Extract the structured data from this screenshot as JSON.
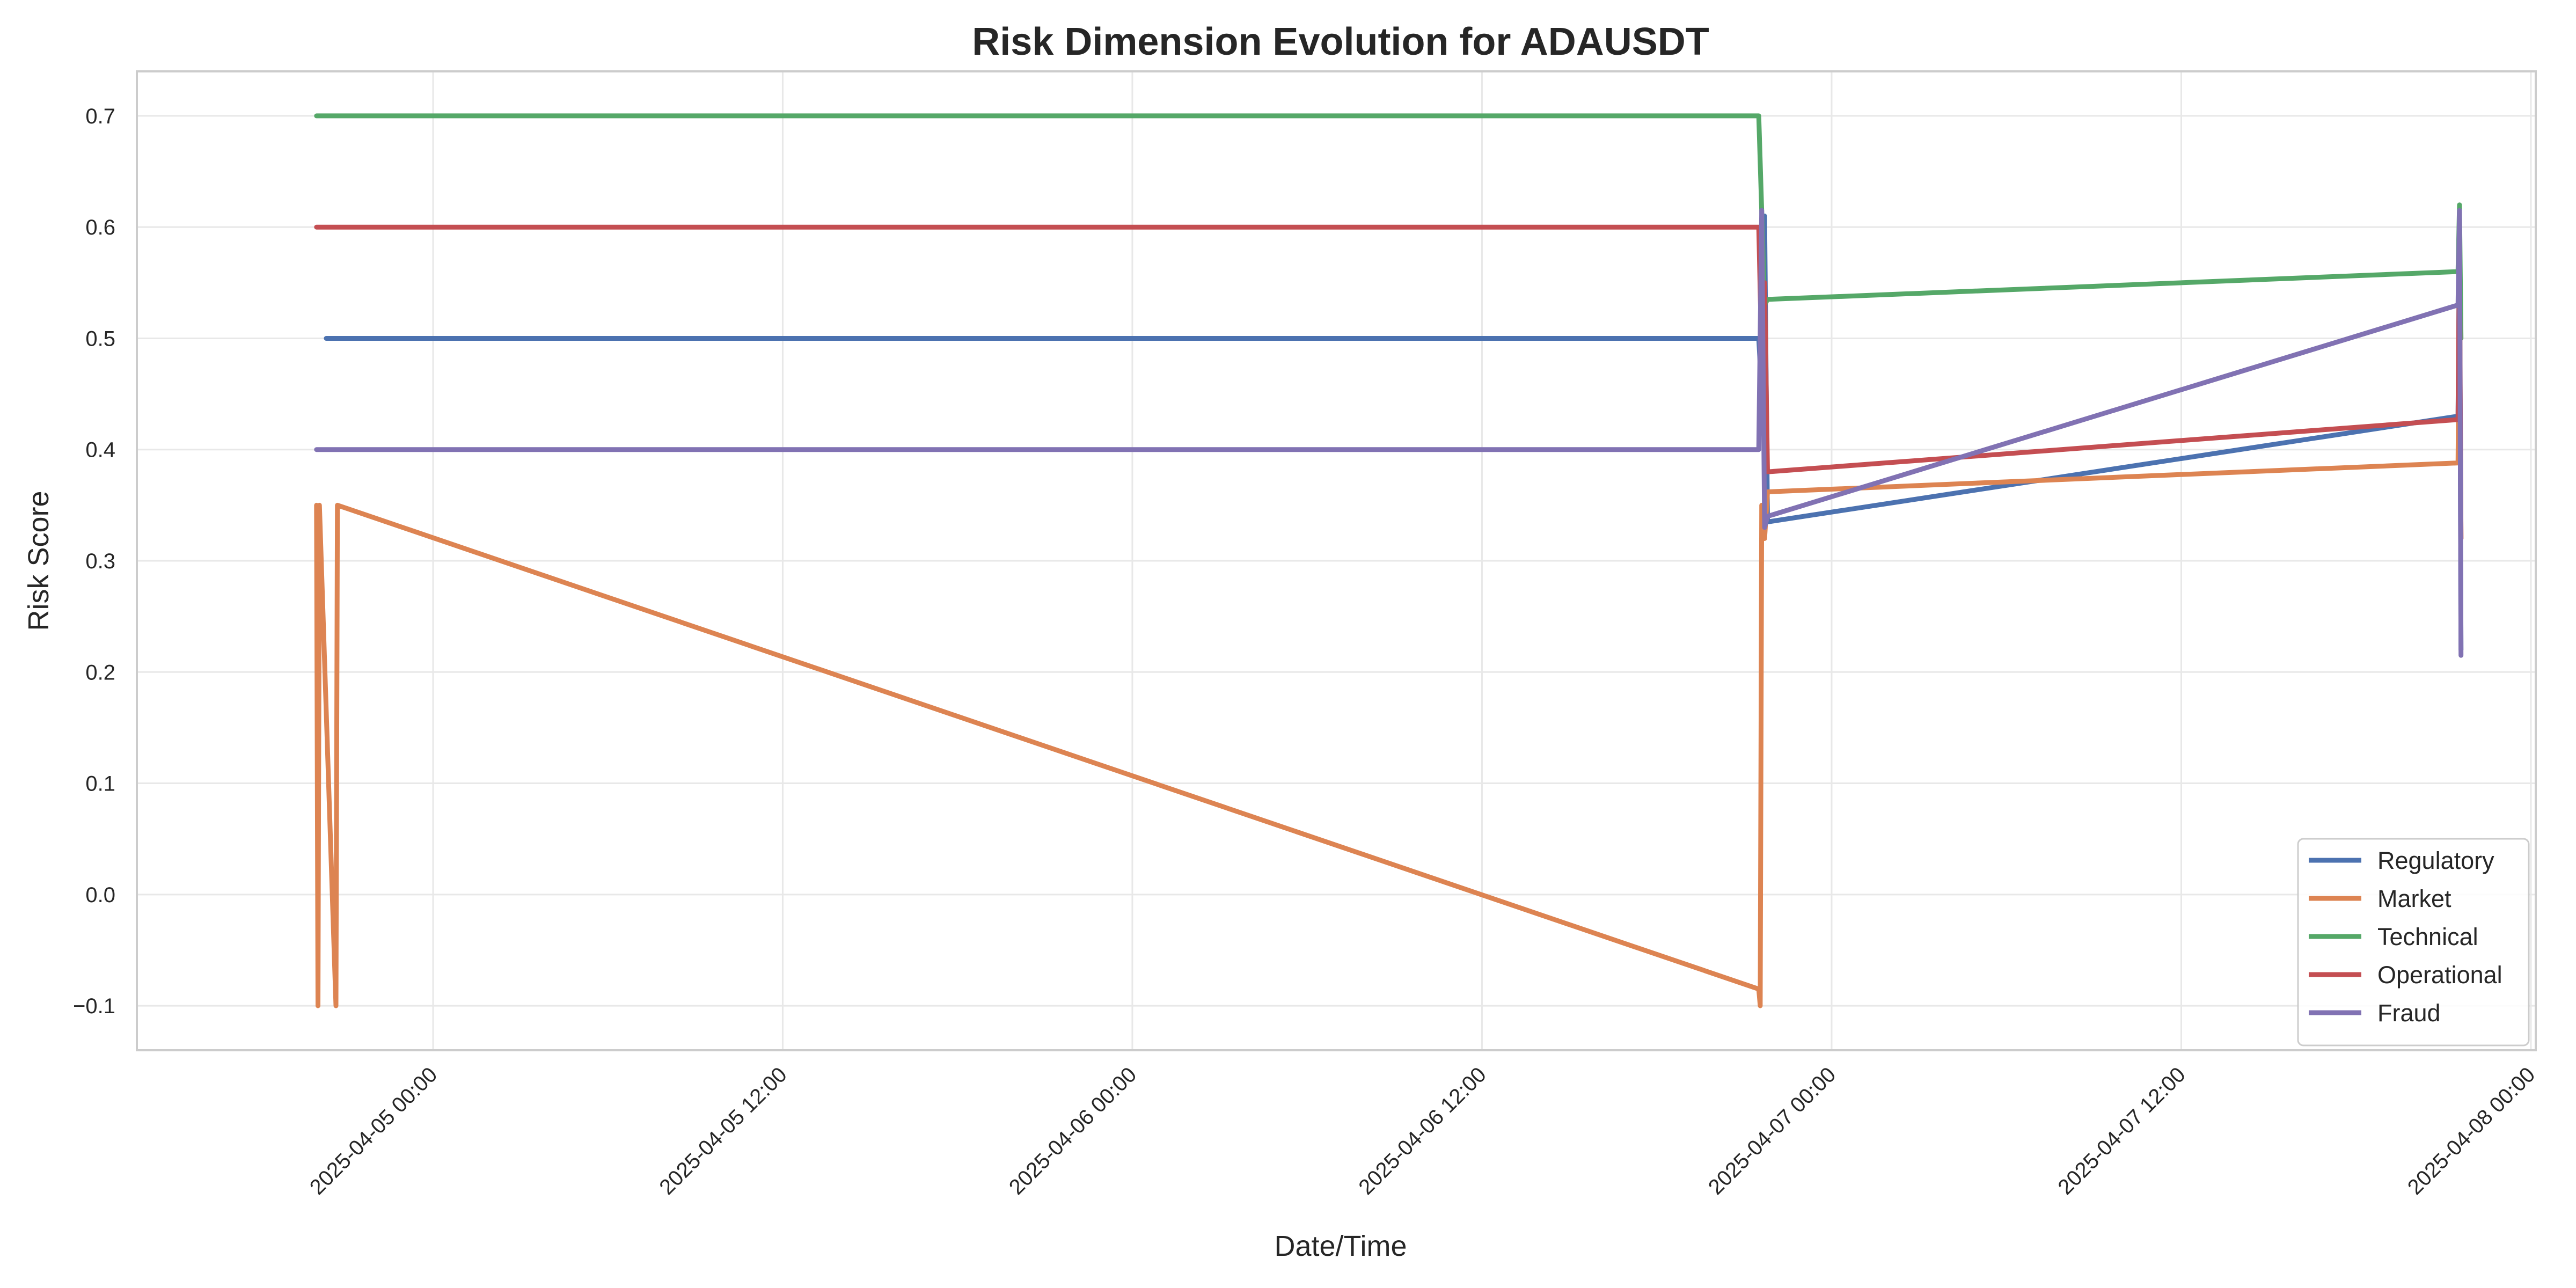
{
  "chart_data": {
    "type": "line",
    "title": "Risk Dimension Evolution for ADAUSDT",
    "xlabel": "Date/Time",
    "ylabel": "Risk Score",
    "ylim": [
      -0.14,
      0.74
    ],
    "xlim": [
      "2025-04-04 13:50",
      "2025-04-08 00:10"
    ],
    "y_ticks": [
      -0.1,
      0.0,
      0.1,
      0.2,
      0.3,
      0.4,
      0.5,
      0.6,
      0.7
    ],
    "y_tick_labels": [
      "−0.1",
      "0.0",
      "0.1",
      "0.2",
      "0.3",
      "0.4",
      "0.5",
      "0.6",
      "0.7"
    ],
    "x_ticks": [
      "2025-04-05 00:00",
      "2025-04-05 12:00",
      "2025-04-06 00:00",
      "2025-04-06 12:00",
      "2025-04-07 00:00",
      "2025-04-07 12:00",
      "2025-04-08 00:00"
    ],
    "x_tick_labels": [
      "2025-04-05 00:00",
      "2025-04-05 12:00",
      "2025-04-06 00:00",
      "2025-04-06 12:00",
      "2025-04-07 00:00",
      "2025-04-07 12:00",
      "2025-04-08 00:00"
    ],
    "grid": true,
    "legend_position": "bottom-right",
    "series": [
      {
        "name": "Regulatory",
        "color": "#4c72b0",
        "points": [
          [
            "2025-04-04 20:20",
            0.5
          ],
          [
            "2025-04-06 21:30",
            0.5
          ],
          [
            "2025-04-06 21:36",
            0.45
          ],
          [
            "2025-04-06 21:42",
            0.61
          ],
          [
            "2025-04-06 21:48",
            0.335
          ],
          [
            "2025-04-07 21:30",
            0.43
          ],
          [
            "2025-04-07 21:33",
            0.6
          ],
          [
            "2025-04-07 21:36",
            0.22
          ]
        ]
      },
      {
        "name": "Market",
        "color": "#dd8452",
        "points": [
          [
            "2025-04-04 20:00",
            0.35
          ],
          [
            "2025-04-04 20:03",
            -0.1
          ],
          [
            "2025-04-04 20:06",
            0.35
          ],
          [
            "2025-04-04 20:40",
            -0.1
          ],
          [
            "2025-04-04 20:43",
            0.35
          ],
          [
            "2025-04-06 21:30",
            -0.085
          ],
          [
            "2025-04-06 21:33",
            -0.1
          ],
          [
            "2025-04-06 21:36",
            0.35
          ],
          [
            "2025-04-06 21:42",
            0.32
          ],
          [
            "2025-04-06 21:48",
            0.362
          ],
          [
            "2025-04-07 21:30",
            0.388
          ],
          [
            "2025-04-07 21:33",
            0.55
          ],
          [
            "2025-04-07 21:36",
            0.32
          ]
        ]
      },
      {
        "name": "Technical",
        "color": "#55a868",
        "points": [
          [
            "2025-04-04 20:00",
            0.7
          ],
          [
            "2025-04-06 21:30",
            0.7
          ],
          [
            "2025-04-06 21:42",
            0.53
          ],
          [
            "2025-04-06 21:48",
            0.535
          ],
          [
            "2025-04-07 21:30",
            0.56
          ],
          [
            "2025-04-07 21:33",
            0.62
          ],
          [
            "2025-04-07 21:36",
            0.5
          ]
        ]
      },
      {
        "name": "Operational",
        "color": "#c44e52",
        "points": [
          [
            "2025-04-04 20:00",
            0.6
          ],
          [
            "2025-04-06 21:30",
            0.6
          ],
          [
            "2025-04-06 21:36",
            0.48
          ],
          [
            "2025-04-06 21:42",
            0.55
          ],
          [
            "2025-04-06 21:48",
            0.38
          ],
          [
            "2025-04-07 21:30",
            0.427
          ],
          [
            "2025-04-07 21:33",
            0.58
          ],
          [
            "2025-04-07 21:36",
            0.32
          ]
        ]
      },
      {
        "name": "Fraud",
        "color": "#8172b3",
        "points": [
          [
            "2025-04-04 20:00",
            0.4
          ],
          [
            "2025-04-06 21:30",
            0.4
          ],
          [
            "2025-04-06 21:36",
            0.615
          ],
          [
            "2025-04-06 21:42",
            0.33
          ],
          [
            "2025-04-06 21:48",
            0.34
          ],
          [
            "2025-04-07 21:30",
            0.53
          ],
          [
            "2025-04-07 21:33",
            0.615
          ],
          [
            "2025-04-07 21:36",
            0.215
          ]
        ]
      }
    ]
  }
}
